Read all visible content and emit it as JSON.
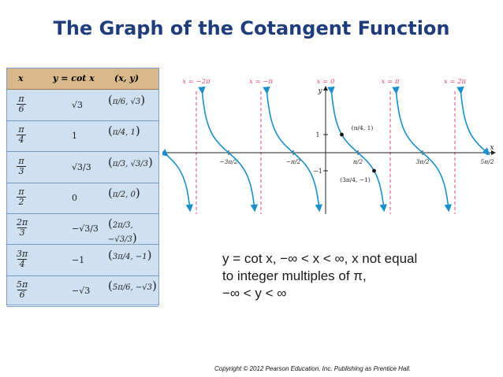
{
  "title": "The Graph of the Cotangent Function",
  "table": {
    "headers": [
      "x",
      "y = cot x",
      "(x, y)"
    ],
    "rows": [
      {
        "x_num": "π",
        "x_den": "6",
        "y": "√3",
        "pt_num": "π",
        "pt_den": "6",
        "pt_y": "√3"
      },
      {
        "x_num": "π",
        "x_den": "4",
        "y": "1",
        "pt_num": "π",
        "pt_den": "4",
        "pt_y": "1"
      },
      {
        "x_num": "π",
        "x_den": "3",
        "y": "√3/3",
        "pt_num": "π",
        "pt_den": "3",
        "pt_y": "√3/3"
      },
      {
        "x_num": "π",
        "x_den": "2",
        "y": "0",
        "pt_num": "π",
        "pt_den": "2",
        "pt_y": "0"
      },
      {
        "x_num": "2π",
        "x_den": "3",
        "y": "−√3/3",
        "pt_num": "2π",
        "pt_den": "3",
        "pt_y": "−√3/3"
      },
      {
        "x_num": "3π",
        "x_den": "4",
        "y": "−1",
        "pt_num": "3π",
        "pt_den": "4",
        "pt_y": "−1"
      },
      {
        "x_num": "5π",
        "x_den": "6",
        "y": "−√3",
        "pt_num": "5π",
        "pt_den": "6",
        "pt_y": "−√3"
      }
    ]
  },
  "graph": {
    "asymptote_labels": [
      "x = −2π",
      "x = −π",
      "x = 0",
      "x = π",
      "x = 2π"
    ],
    "x_ticks": [
      "−3π/2",
      "−π/2",
      "π/2",
      "3π/2",
      "5π/2"
    ],
    "y_ticks": [
      "1",
      "−1"
    ],
    "axis_x": "x",
    "axis_y": "y",
    "points": [
      {
        "label": "(π/4, 1)",
        "x": 0.785,
        "y": 1
      },
      {
        "label": "(3π/4, −1)",
        "x": 2.356,
        "y": -1
      }
    ],
    "colors": {
      "curve": "#1a8fc9",
      "asymptote": "#e0457a",
      "axis": "#222222"
    }
  },
  "caption": {
    "line1": "y = cot x, −∞ < x < ∞, x not equal",
    "line2": "to integer multiples of π,",
    "line3": "−∞ < y < ∞"
  },
  "copyright": "Copyright © 2012 Pearson Education, Inc. Publishing as Prentice Hall."
}
